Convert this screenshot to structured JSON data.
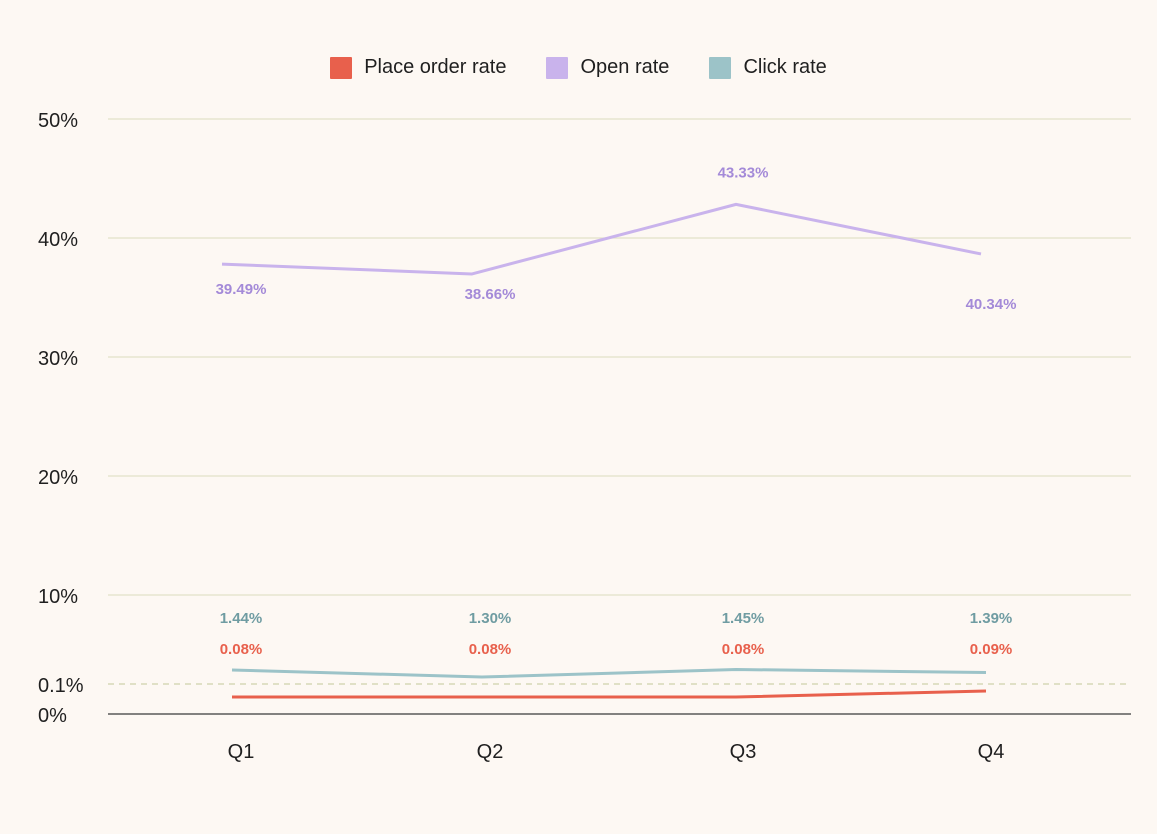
{
  "chart_data": {
    "type": "line",
    "categories": [
      "Q1",
      "Q2",
      "Q3",
      "Q4"
    ],
    "series": [
      {
        "key": "place_order",
        "name": "Place order rate",
        "color": "#e8604c",
        "values": [
          0.08,
          0.08,
          0.08,
          0.09
        ],
        "labels": [
          "0.08%",
          "0.08%",
          "0.08%",
          "0.09%"
        ]
      },
      {
        "key": "open",
        "name": "Open rate",
        "color": "#c9b3ec",
        "label_color": "#a48ad8",
        "values": [
          39.49,
          38.66,
          43.33,
          40.34
        ],
        "labels": [
          "39.49%",
          "38.66%",
          "43.33%",
          "40.34%"
        ]
      },
      {
        "key": "click",
        "name": "Click rate",
        "color": "#9cc3c8",
        "label_color": "#6f9ca2",
        "values": [
          1.44,
          1.3,
          1.45,
          1.39
        ],
        "labels": [
          "1.44%",
          "1.30%",
          "1.45%",
          "1.39%"
        ]
      }
    ],
    "y_ticks": [
      {
        "value": 0,
        "label": "0%"
      },
      {
        "value": 0.1,
        "label": "0.1%"
      },
      {
        "value": 10,
        "label": "10%"
      },
      {
        "value": 20,
        "label": "20%"
      },
      {
        "value": 30,
        "label": "30%"
      },
      {
        "value": 40,
        "label": "40%"
      },
      {
        "value": 50,
        "label": "50%"
      }
    ],
    "ylim": [
      0,
      50
    ],
    "y_scale": "broken",
    "grid": true,
    "legend_position": "top-center",
    "title": "",
    "xlabel": "",
    "ylabel": ""
  }
}
